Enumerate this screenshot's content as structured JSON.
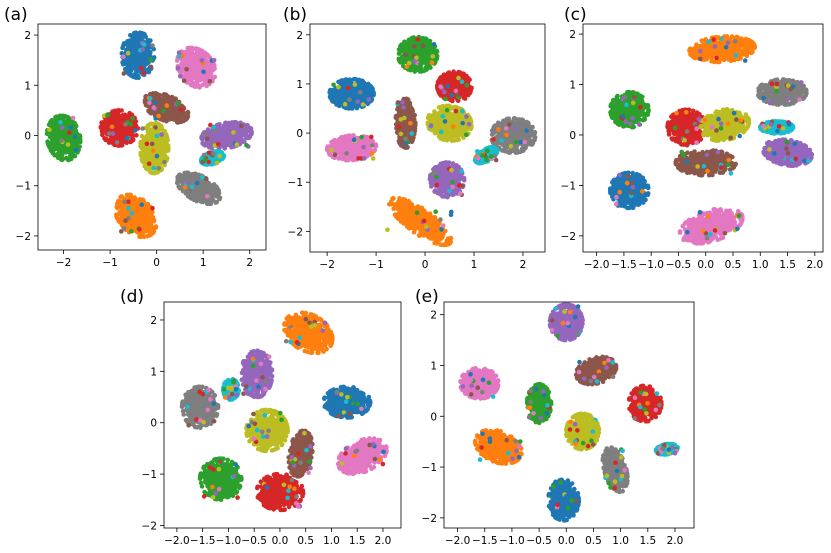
{
  "palette": [
    "#1f77b4",
    "#ff7f0e",
    "#2ca02c",
    "#d62728",
    "#9467bd",
    "#8c564b",
    "#e377c2",
    "#7f7f7f",
    "#bcbd22",
    "#17becf"
  ],
  "chart_data": [
    {
      "label": "(a)",
      "type": "scatter",
      "xlim": [
        -2.55,
        2.35
      ],
      "ylim": [
        -2.28,
        2.22
      ],
      "xticks": [
        -2,
        -1,
        0,
        1,
        2
      ],
      "yticks": [
        -2,
        -1,
        0,
        1,
        2
      ],
      "xtick_labels": [
        "−2",
        "−1",
        "0",
        "1",
        "2"
      ],
      "ytick_labels": [
        "−2",
        "−1",
        "0",
        "1",
        "2"
      ],
      "clusters": [
        {
          "color": 0,
          "cx": -0.4,
          "cy": 1.6,
          "rx": 0.35,
          "ry": 0.45,
          "angle": 0
        },
        {
          "color": 6,
          "cx": 0.85,
          "cy": 1.35,
          "rx": 0.45,
          "ry": 0.35,
          "angle": -40
        },
        {
          "color": 2,
          "cx": -2.0,
          "cy": -0.05,
          "rx": 0.35,
          "ry": 0.45,
          "angle": 15
        },
        {
          "color": 3,
          "cx": -0.8,
          "cy": 0.15,
          "rx": 0.4,
          "ry": 0.35,
          "angle": 0
        },
        {
          "color": 5,
          "cx": 0.2,
          "cy": 0.55,
          "rx": 0.5,
          "ry": 0.25,
          "angle": -20
        },
        {
          "color": 8,
          "cx": -0.05,
          "cy": -0.25,
          "rx": 0.3,
          "ry": 0.5,
          "angle": 0
        },
        {
          "color": 4,
          "cx": 1.5,
          "cy": 0.0,
          "rx": 0.55,
          "ry": 0.25,
          "angle": 10
        },
        {
          "color": 9,
          "cx": 1.2,
          "cy": -0.45,
          "rx": 0.25,
          "ry": 0.12,
          "angle": 15
        },
        {
          "color": 7,
          "cx": 0.9,
          "cy": -1.05,
          "rx": 0.5,
          "ry": 0.25,
          "angle": -25
        },
        {
          "color": 1,
          "cx": -0.45,
          "cy": -1.6,
          "rx": 0.5,
          "ry": 0.35,
          "angle": -40
        }
      ]
    },
    {
      "label": "(b)",
      "type": "scatter",
      "xlim": [
        -2.35,
        2.45
      ],
      "ylim": [
        -2.42,
        2.22
      ],
      "xticks": [
        -2,
        -1,
        0,
        1,
        2
      ],
      "yticks": [
        -2,
        -1,
        0,
        1,
        2
      ],
      "xtick_labels": [
        "−2",
        "−1",
        "0",
        "1",
        "2"
      ],
      "ytick_labels": [
        "−2",
        "−1",
        "0",
        "1",
        "2"
      ],
      "clusters": [
        {
          "color": 0,
          "cx": -1.5,
          "cy": 0.8,
          "rx": 0.45,
          "ry": 0.3,
          "angle": 0
        },
        {
          "color": 2,
          "cx": -0.15,
          "cy": 1.6,
          "rx": 0.4,
          "ry": 0.35,
          "angle": 0
        },
        {
          "color": 3,
          "cx": 0.6,
          "cy": 0.95,
          "rx": 0.35,
          "ry": 0.3,
          "angle": 0
        },
        {
          "color": 6,
          "cx": -1.5,
          "cy": -0.3,
          "rx": 0.5,
          "ry": 0.25,
          "angle": 5
        },
        {
          "color": 5,
          "cx": -0.4,
          "cy": 0.2,
          "rx": 0.2,
          "ry": 0.5,
          "angle": 0
        },
        {
          "color": 8,
          "cx": 0.5,
          "cy": 0.2,
          "rx": 0.45,
          "ry": 0.35,
          "angle": -10
        },
        {
          "color": 7,
          "cx": 1.8,
          "cy": -0.05,
          "rx": 0.45,
          "ry": 0.35,
          "angle": 0
        },
        {
          "color": 9,
          "cx": 1.25,
          "cy": -0.45,
          "rx": 0.25,
          "ry": 0.12,
          "angle": 30
        },
        {
          "color": 4,
          "cx": 0.45,
          "cy": -0.95,
          "rx": 0.35,
          "ry": 0.35,
          "angle": 0
        },
        {
          "color": 1,
          "cx": -0.1,
          "cy": -1.8,
          "rx": 0.75,
          "ry": 0.25,
          "angle": -35
        }
      ]
    },
    {
      "label": "(c)",
      "type": "scatter",
      "xlim": [
        -2.25,
        2.15
      ],
      "ylim": [
        -2.32,
        2.2
      ],
      "xticks": [
        -2.0,
        -1.5,
        -1.0,
        -0.5,
        0.0,
        0.5,
        1.0,
        1.5,
        2.0
      ],
      "yticks": [
        -2,
        -1,
        0,
        1,
        2
      ],
      "xtick_labels": [
        "−2.0",
        "−1.5",
        "−1.0",
        "−0.5",
        "0.0",
        "0.5",
        "1.0",
        "1.5",
        "2.0"
      ],
      "ytick_labels": [
        "−2",
        "−1",
        "0",
        "1",
        "2"
      ],
      "clusters": [
        {
          "color": 1,
          "cx": 0.3,
          "cy": 1.7,
          "rx": 0.6,
          "ry": 0.25,
          "angle": 5
        },
        {
          "color": 7,
          "cx": 1.4,
          "cy": 0.85,
          "rx": 0.45,
          "ry": 0.25,
          "angle": 0
        },
        {
          "color": 2,
          "cx": -1.4,
          "cy": 0.5,
          "rx": 0.35,
          "ry": 0.35,
          "angle": 20
        },
        {
          "color": 3,
          "cx": -0.35,
          "cy": 0.15,
          "rx": 0.35,
          "ry": 0.35,
          "angle": 0
        },
        {
          "color": 8,
          "cx": 0.35,
          "cy": 0.2,
          "rx": 0.45,
          "ry": 0.3,
          "angle": 15
        },
        {
          "color": 9,
          "cx": 1.3,
          "cy": 0.15,
          "rx": 0.3,
          "ry": 0.12,
          "angle": 0
        },
        {
          "color": 4,
          "cx": 1.5,
          "cy": -0.35,
          "rx": 0.45,
          "ry": 0.25,
          "angle": -10
        },
        {
          "color": 5,
          "cx": 0.0,
          "cy": -0.55,
          "rx": 0.55,
          "ry": 0.25,
          "angle": 0
        },
        {
          "color": 0,
          "cx": -1.4,
          "cy": -1.1,
          "rx": 0.35,
          "ry": 0.35,
          "angle": 10
        },
        {
          "color": 6,
          "cx": 0.1,
          "cy": -1.8,
          "rx": 0.6,
          "ry": 0.3,
          "angle": 20
        }
      ]
    },
    {
      "label": "(d)",
      "type": "scatter",
      "xlim": [
        -2.25,
        2.35
      ],
      "ylim": [
        -2.05,
        2.35
      ],
      "xticks": [
        -2.0,
        -1.5,
        -1.0,
        -0.5,
        0.0,
        0.5,
        1.0,
        1.5,
        2.0
      ],
      "yticks": [
        -2,
        -1,
        0,
        1,
        2
      ],
      "xtick_labels": [
        "−2.0",
        "−1.5",
        "−1.0",
        "−0.5",
        "0.0",
        "0.5",
        "1.0",
        "1.5",
        "2.0"
      ],
      "ytick_labels": [
        "−2",
        "−1",
        "0",
        "1",
        "2"
      ],
      "clusters": [
        {
          "color": 1,
          "cx": 0.55,
          "cy": 1.75,
          "rx": 0.5,
          "ry": 0.35,
          "angle": -30
        },
        {
          "color": 4,
          "cx": -0.45,
          "cy": 0.95,
          "rx": 0.3,
          "ry": 0.45,
          "angle": 0
        },
        {
          "color": 9,
          "cx": -0.95,
          "cy": 0.65,
          "rx": 0.15,
          "ry": 0.2,
          "angle": 0
        },
        {
          "color": 7,
          "cx": -1.55,
          "cy": 0.3,
          "rx": 0.35,
          "ry": 0.4,
          "angle": 0
        },
        {
          "color": 0,
          "cx": 1.3,
          "cy": 0.4,
          "rx": 0.45,
          "ry": 0.3,
          "angle": 0
        },
        {
          "color": 8,
          "cx": -0.25,
          "cy": -0.15,
          "rx": 0.4,
          "ry": 0.4,
          "angle": 0
        },
        {
          "color": 5,
          "cx": 0.4,
          "cy": -0.6,
          "rx": 0.22,
          "ry": 0.45,
          "angle": -10
        },
        {
          "color": 6,
          "cx": 1.6,
          "cy": -0.65,
          "rx": 0.5,
          "ry": 0.3,
          "angle": 25
        },
        {
          "color": 2,
          "cx": -1.15,
          "cy": -1.1,
          "rx": 0.4,
          "ry": 0.4,
          "angle": 0
        },
        {
          "color": 3,
          "cx": 0.0,
          "cy": -1.35,
          "rx": 0.45,
          "ry": 0.35,
          "angle": 0
        }
      ]
    },
    {
      "label": "(e)",
      "type": "scatter",
      "xlim": [
        -2.25,
        2.35
      ],
      "ylim": [
        -2.2,
        2.25
      ],
      "xticks": [
        -2.0,
        -1.5,
        -1.0,
        -0.5,
        0.0,
        0.5,
        1.0,
        1.5,
        2.0
      ],
      "yticks": [
        -2,
        -1,
        0,
        1,
        2
      ],
      "xtick_labels": [
        "−2.0",
        "−1.5",
        "−1.0",
        "−0.5",
        "0.0",
        "0.5",
        "1.0",
        "1.5",
        "2.0"
      ],
      "ytick_labels": [
        "−2",
        "−1",
        "0",
        "1",
        "2"
      ],
      "clusters": [
        {
          "color": 4,
          "cx": 0.0,
          "cy": 1.85,
          "rx": 0.3,
          "ry": 0.35,
          "angle": 0
        },
        {
          "color": 6,
          "cx": -1.6,
          "cy": 0.65,
          "rx": 0.35,
          "ry": 0.3,
          "angle": 0
        },
        {
          "color": 5,
          "cx": 0.55,
          "cy": 0.9,
          "rx": 0.38,
          "ry": 0.25,
          "angle": 20
        },
        {
          "color": 2,
          "cx": -0.5,
          "cy": 0.25,
          "rx": 0.22,
          "ry": 0.38,
          "angle": 0
        },
        {
          "color": 3,
          "cx": 1.45,
          "cy": 0.25,
          "rx": 0.3,
          "ry": 0.35,
          "angle": 0
        },
        {
          "color": 8,
          "cx": 0.3,
          "cy": -0.3,
          "rx": 0.3,
          "ry": 0.35,
          "angle": 0
        },
        {
          "color": 1,
          "cx": -1.25,
          "cy": -0.6,
          "rx": 0.45,
          "ry": 0.3,
          "angle": -25
        },
        {
          "color": 7,
          "cx": 0.9,
          "cy": -1.05,
          "rx": 0.2,
          "ry": 0.45,
          "angle": 15
        },
        {
          "color": 9,
          "cx": 1.85,
          "cy": -0.65,
          "rx": 0.2,
          "ry": 0.1,
          "angle": 10
        },
        {
          "color": 0,
          "cx": -0.05,
          "cy": -1.65,
          "rx": 0.28,
          "ry": 0.4,
          "angle": 0
        }
      ]
    }
  ]
}
